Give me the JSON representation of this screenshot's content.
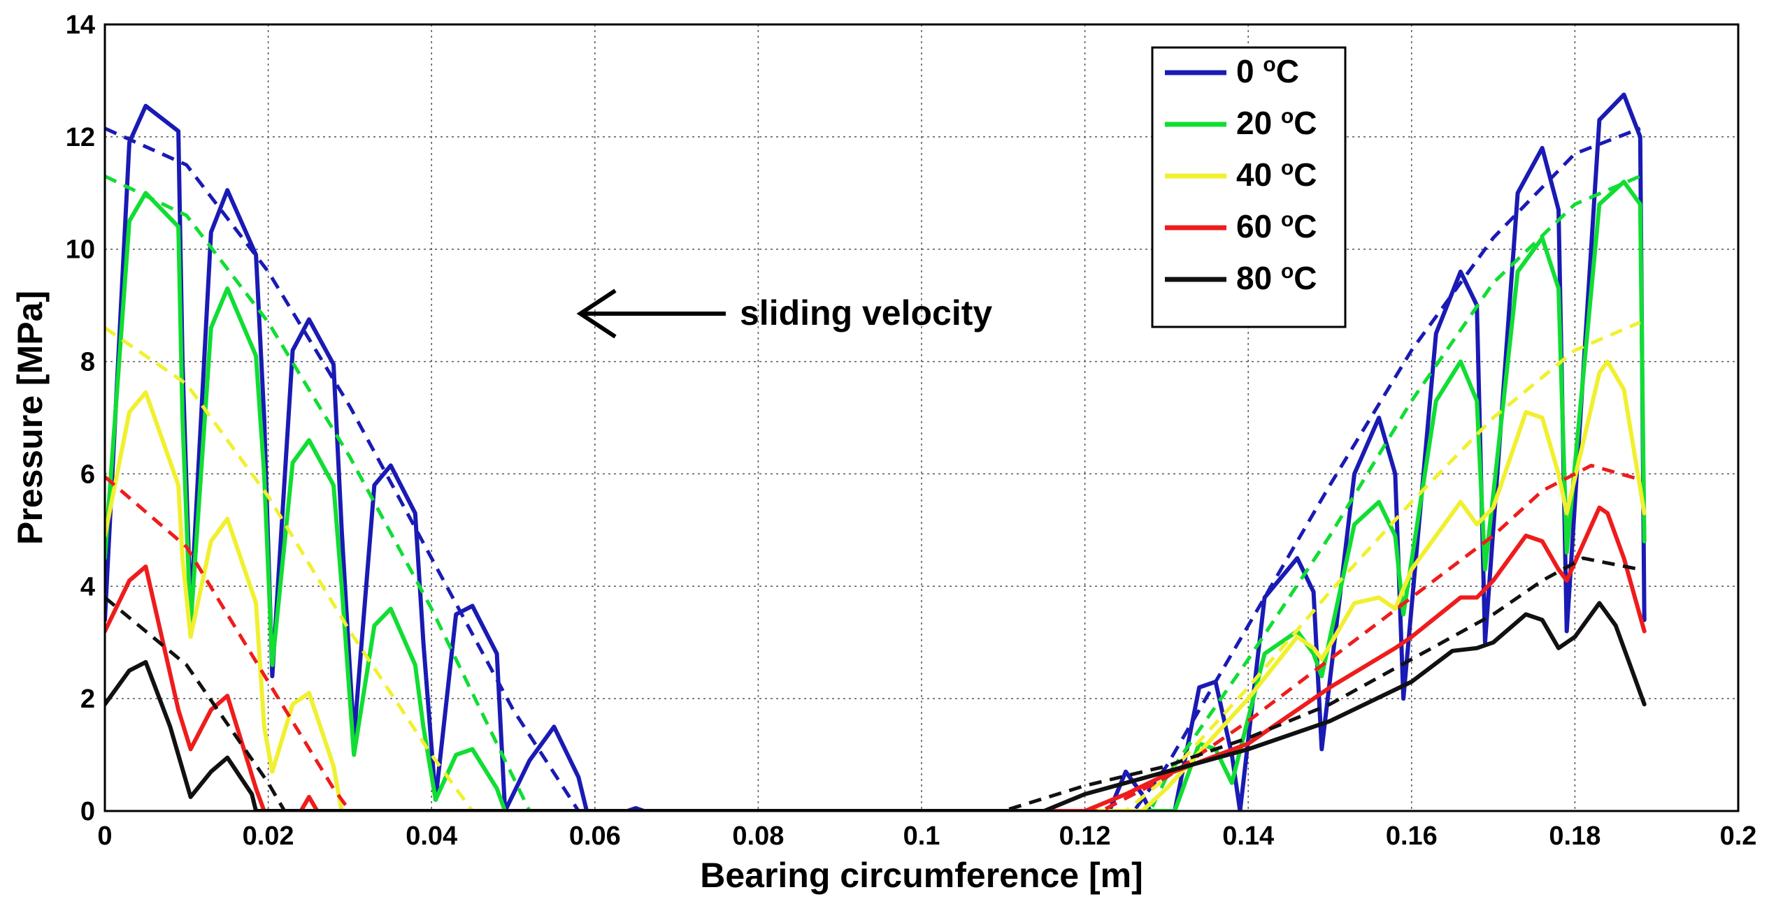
{
  "chart_data": {
    "type": "line",
    "title": "",
    "xlabel": "Bearing circumference [m]",
    "ylabel": "Pressure [MPa]",
    "xlim": [
      0,
      0.2
    ],
    "ylim": [
      0,
      14
    ],
    "x_ticks": [
      "0",
      "0.02",
      "0.04",
      "0.06",
      "0.08",
      "0.1",
      "0.12",
      "0.14",
      "0.16",
      "0.18",
      "0.2"
    ],
    "y_ticks": [
      "0",
      "2",
      "4",
      "6",
      "8",
      "10",
      "12",
      "14"
    ],
    "grid": true,
    "legend_position": "top-right",
    "annotation": {
      "text": "sliding velocity",
      "arrow_direction": "left",
      "x": 0.06,
      "y": 8.8
    },
    "series": [
      {
        "name": "0 °C",
        "color": "#1a1ab4",
        "solid": [
          [
            0,
            3.4
          ],
          [
            0.003,
            11.9
          ],
          [
            0.005,
            12.55
          ],
          [
            0.009,
            12.1
          ],
          [
            0.0095,
            8
          ],
          [
            0.0105,
            3.5
          ],
          [
            0.013,
            10.3
          ],
          [
            0.015,
            11.05
          ],
          [
            0.0185,
            9.9
          ],
          [
            0.0195,
            7
          ],
          [
            0.0205,
            2.4
          ],
          [
            0.023,
            8.2
          ],
          [
            0.025,
            8.75
          ],
          [
            0.028,
            7.95
          ],
          [
            0.029,
            5
          ],
          [
            0.0305,
            1.3
          ],
          [
            0.033,
            5.8
          ],
          [
            0.035,
            6.15
          ],
          [
            0.038,
            5.3
          ],
          [
            0.039,
            3
          ],
          [
            0.0405,
            0.2
          ],
          [
            0.043,
            3.5
          ],
          [
            0.045,
            3.65
          ],
          [
            0.048,
            2.8
          ],
          [
            0.049,
            0
          ],
          [
            0.052,
            0.9
          ],
          [
            0.055,
            1.5
          ],
          [
            0.058,
            0.6
          ],
          [
            0.059,
            0
          ],
          [
            0.064,
            0
          ],
          [
            0.065,
            0.05
          ],
          [
            0.066,
            0
          ],
          [
            0.123,
            0
          ],
          [
            0.125,
            0.7
          ],
          [
            0.127,
            0.3
          ],
          [
            0.128,
            0
          ],
          [
            0.131,
            0
          ],
          [
            0.134,
            2.2
          ],
          [
            0.136,
            2.3
          ],
          [
            0.138,
            1
          ],
          [
            0.139,
            0
          ],
          [
            0.142,
            3.8
          ],
          [
            0.146,
            4.5
          ],
          [
            0.148,
            3.9
          ],
          [
            0.149,
            1.1
          ],
          [
            0.153,
            6
          ],
          [
            0.156,
            7
          ],
          [
            0.158,
            6
          ],
          [
            0.159,
            2
          ],
          [
            0.163,
            8.5
          ],
          [
            0.166,
            9.6
          ],
          [
            0.168,
            9
          ],
          [
            0.169,
            3
          ],
          [
            0.173,
            11
          ],
          [
            0.176,
            11.8
          ],
          [
            0.178,
            10.7
          ],
          [
            0.179,
            3.2
          ],
          [
            0.183,
            12.3
          ],
          [
            0.186,
            12.75
          ],
          [
            0.188,
            12
          ],
          [
            0.1885,
            3.4
          ]
        ],
        "dashed": [
          [
            0,
            12.15
          ],
          [
            0.01,
            11.5
          ],
          [
            0.02,
            9.6
          ],
          [
            0.03,
            7.2
          ],
          [
            0.04,
            4.5
          ],
          [
            0.05,
            1.8
          ],
          [
            0.058,
            0
          ],
          [
            0.126,
            0
          ],
          [
            0.13,
            0.8
          ],
          [
            0.14,
            3.3
          ],
          [
            0.15,
            5.8
          ],
          [
            0.16,
            8.2
          ],
          [
            0.17,
            10.2
          ],
          [
            0.18,
            11.7
          ],
          [
            0.188,
            12.15
          ]
        ]
      },
      {
        "name": "20 °C",
        "color": "#11dd33",
        "solid": [
          [
            0,
            4.5
          ],
          [
            0.003,
            10.5
          ],
          [
            0.005,
            11
          ],
          [
            0.009,
            10.4
          ],
          [
            0.0095,
            7
          ],
          [
            0.0105,
            3.3
          ],
          [
            0.013,
            8.6
          ],
          [
            0.015,
            9.3
          ],
          [
            0.0185,
            8.1
          ],
          [
            0.0195,
            6
          ],
          [
            0.0205,
            2.6
          ],
          [
            0.023,
            6.2
          ],
          [
            0.025,
            6.6
          ],
          [
            0.028,
            5.8
          ],
          [
            0.029,
            4
          ],
          [
            0.0305,
            1
          ],
          [
            0.033,
            3.3
          ],
          [
            0.035,
            3.6
          ],
          [
            0.038,
            2.6
          ],
          [
            0.039,
            1.5
          ],
          [
            0.0405,
            0.2
          ],
          [
            0.043,
            1
          ],
          [
            0.045,
            1.1
          ],
          [
            0.048,
            0.4
          ],
          [
            0.049,
            0
          ],
          [
            0.131,
            0
          ],
          [
            0.134,
            1.2
          ],
          [
            0.136,
            1.1
          ],
          [
            0.138,
            0.5
          ],
          [
            0.142,
            2.8
          ],
          [
            0.146,
            3.2
          ],
          [
            0.148,
            2.8
          ],
          [
            0.149,
            2.4
          ],
          [
            0.153,
            5.1
          ],
          [
            0.156,
            5.5
          ],
          [
            0.158,
            4.9
          ],
          [
            0.159,
            3.5
          ],
          [
            0.163,
            7.3
          ],
          [
            0.166,
            8
          ],
          [
            0.168,
            7.3
          ],
          [
            0.169,
            4.3
          ],
          [
            0.173,
            9.6
          ],
          [
            0.176,
            10.2
          ],
          [
            0.178,
            9.3
          ],
          [
            0.179,
            4.6
          ],
          [
            0.183,
            10.8
          ],
          [
            0.186,
            11.2
          ],
          [
            0.188,
            10.8
          ],
          [
            0.1885,
            4.8
          ]
        ],
        "dashed": [
          [
            0,
            11.3
          ],
          [
            0.01,
            10.6
          ],
          [
            0.02,
            8.7
          ],
          [
            0.03,
            6.3
          ],
          [
            0.04,
            3.6
          ],
          [
            0.048,
            1.2
          ],
          [
            0.052,
            0
          ],
          [
            0.128,
            0
          ],
          [
            0.13,
            0.6
          ],
          [
            0.14,
            2.7
          ],
          [
            0.15,
            4.9
          ],
          [
            0.16,
            7.3
          ],
          [
            0.17,
            9.4
          ],
          [
            0.18,
            10.8
          ],
          [
            0.188,
            11.3
          ]
        ]
      },
      {
        "name": "40 °C",
        "color": "#f0f030",
        "solid": [
          [
            0,
            4.9
          ],
          [
            0.003,
            7.1
          ],
          [
            0.005,
            7.45
          ],
          [
            0.009,
            5.8
          ],
          [
            0.0095,
            4.5
          ],
          [
            0.0105,
            3.1
          ],
          [
            0.013,
            4.8
          ],
          [
            0.015,
            5.2
          ],
          [
            0.0185,
            3.7
          ],
          [
            0.0195,
            1.5
          ],
          [
            0.0205,
            0.7
          ],
          [
            0.023,
            1.9
          ],
          [
            0.025,
            2.1
          ],
          [
            0.028,
            0.8
          ],
          [
            0.029,
            0
          ],
          [
            0.127,
            0
          ],
          [
            0.13,
            0.4
          ],
          [
            0.14,
            2
          ],
          [
            0.146,
            3.1
          ],
          [
            0.148,
            2.9
          ],
          [
            0.149,
            2.7
          ],
          [
            0.153,
            3.7
          ],
          [
            0.156,
            3.8
          ],
          [
            0.158,
            3.6
          ],
          [
            0.16,
            4.3
          ],
          [
            0.166,
            5.5
          ],
          [
            0.168,
            5.1
          ],
          [
            0.17,
            5.4
          ],
          [
            0.174,
            7.1
          ],
          [
            0.176,
            7
          ],
          [
            0.178,
            6
          ],
          [
            0.179,
            5.3
          ],
          [
            0.183,
            7.8
          ],
          [
            0.184,
            8
          ],
          [
            0.186,
            7.5
          ],
          [
            0.1885,
            5.3
          ]
        ],
        "dashed": [
          [
            0,
            8.6
          ],
          [
            0.01,
            7.6
          ],
          [
            0.02,
            5.6
          ],
          [
            0.03,
            3.2
          ],
          [
            0.04,
            1
          ],
          [
            0.045,
            0
          ],
          [
            0.125,
            0
          ],
          [
            0.13,
            0.6
          ],
          [
            0.14,
            2.2
          ],
          [
            0.15,
            3.9
          ],
          [
            0.16,
            5.5
          ],
          [
            0.17,
            7
          ],
          [
            0.18,
            8.2
          ],
          [
            0.188,
            8.7
          ]
        ]
      },
      {
        "name": "60 °C",
        "color": "#ee1c1c",
        "solid": [
          [
            0,
            3.2
          ],
          [
            0.003,
            4.1
          ],
          [
            0.005,
            4.35
          ],
          [
            0.009,
            1.8
          ],
          [
            0.0105,
            1.1
          ],
          [
            0.013,
            1.8
          ],
          [
            0.015,
            2.05
          ],
          [
            0.0185,
            0.4
          ],
          [
            0.0195,
            0
          ],
          [
            0.024,
            0
          ],
          [
            0.025,
            0.25
          ],
          [
            0.026,
            0
          ],
          [
            0.12,
            0
          ],
          [
            0.125,
            0.3
          ],
          [
            0.13,
            0.65
          ],
          [
            0.14,
            1.2
          ],
          [
            0.15,
            2.2
          ],
          [
            0.158,
            2.9
          ],
          [
            0.16,
            3.1
          ],
          [
            0.166,
            3.8
          ],
          [
            0.168,
            3.8
          ],
          [
            0.17,
            4.1
          ],
          [
            0.174,
            4.9
          ],
          [
            0.176,
            4.8
          ],
          [
            0.178,
            4.3
          ],
          [
            0.179,
            4.1
          ],
          [
            0.183,
            5.4
          ],
          [
            0.184,
            5.3
          ],
          [
            0.186,
            4.5
          ],
          [
            0.1885,
            3.2
          ]
        ],
        "dashed": [
          [
            0,
            5.95
          ],
          [
            0.01,
            4.7
          ],
          [
            0.02,
            2.3
          ],
          [
            0.028,
            0.4
          ],
          [
            0.03,
            0
          ],
          [
            0.122,
            0
          ],
          [
            0.13,
            0.6
          ],
          [
            0.14,
            1.6
          ],
          [
            0.15,
            2.7
          ],
          [
            0.16,
            3.8
          ],
          [
            0.17,
            4.9
          ],
          [
            0.176,
            5.7
          ],
          [
            0.182,
            6.15
          ],
          [
            0.188,
            5.9
          ]
        ]
      },
      {
        "name": "80 °C",
        "color": "#111111",
        "solid": [
          [
            0,
            1.9
          ],
          [
            0.003,
            2.5
          ],
          [
            0.005,
            2.65
          ],
          [
            0.008,
            1.5
          ],
          [
            0.0105,
            0.25
          ],
          [
            0.013,
            0.7
          ],
          [
            0.015,
            0.95
          ],
          [
            0.018,
            0.3
          ],
          [
            0.0185,
            0
          ],
          [
            0.115,
            0
          ],
          [
            0.12,
            0.3
          ],
          [
            0.13,
            0.7
          ],
          [
            0.14,
            1.1
          ],
          [
            0.15,
            1.6
          ],
          [
            0.16,
            2.3
          ],
          [
            0.165,
            2.85
          ],
          [
            0.168,
            2.9
          ],
          [
            0.17,
            3
          ],
          [
            0.174,
            3.5
          ],
          [
            0.176,
            3.4
          ],
          [
            0.178,
            2.9
          ],
          [
            0.18,
            3.1
          ],
          [
            0.183,
            3.7
          ],
          [
            0.185,
            3.3
          ],
          [
            0.187,
            2.5
          ],
          [
            0.1885,
            1.9
          ]
        ],
        "dashed": [
          [
            0,
            3.8
          ],
          [
            0.01,
            2.6
          ],
          [
            0.02,
            0.5
          ],
          [
            0.022,
            0
          ],
          [
            0.11,
            0
          ],
          [
            0.12,
            0.45
          ],
          [
            0.13,
            0.8
          ],
          [
            0.14,
            1.3
          ],
          [
            0.15,
            1.9
          ],
          [
            0.16,
            2.7
          ],
          [
            0.17,
            3.5
          ],
          [
            0.176,
            4.1
          ],
          [
            0.181,
            4.5
          ],
          [
            0.188,
            4.3
          ]
        ]
      }
    ]
  }
}
